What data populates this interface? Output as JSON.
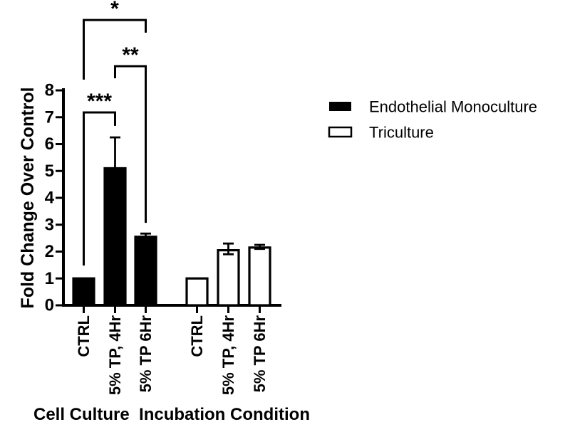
{
  "figure": {
    "background_color": "#ffffff",
    "ink_color": "#000000"
  },
  "chart_data": {
    "type": "bar",
    "title": "",
    "ylabel": "Fold Change Over Control",
    "xlabel": "Cell Culture  Incubation Condition",
    "ylim": [
      0,
      8
    ],
    "yticks": [
      0,
      1,
      2,
      3,
      4,
      5,
      6,
      7,
      8
    ],
    "grid": false,
    "legend_position": "right",
    "categories": [
      "CTRL",
      "5% TP, 4Hr",
      "5% TP 6Hr"
    ],
    "x_tick_labels_displayed": [
      "CTRL",
      "5% TP, 4Hr",
      "5% TP 6Hr",
      "CTRL",
      "5% TP, 4Hr",
      "5% TP 6Hr"
    ],
    "series": [
      {
        "name": "Endothelial Monoculture",
        "fill": "#000000",
        "values": [
          1.0,
          5.1,
          2.55
        ],
        "err_up": [
          0,
          1.15,
          0.12
        ],
        "err_down": [
          0,
          0,
          0
        ]
      },
      {
        "name": "Triculture",
        "fill": "#ffffff",
        "values": [
          1.0,
          2.05,
          2.15
        ],
        "err_up": [
          0,
          0.25,
          0.1
        ],
        "err_down": [
          0,
          0.15,
          0.05
        ]
      }
    ],
    "significance_brackets": [
      {
        "label": "***",
        "series": 0,
        "bar_from": 0,
        "bar_to": 1,
        "level_y": 7.18,
        "drop_left_to": 1.48,
        "drop_right_to": 6.68
      },
      {
        "label": "**",
        "series": 0,
        "bar_from": 1,
        "bar_to": 2,
        "level_y": 8.9,
        "drop_left_to": 8.45,
        "drop_right_to": 3.07
      },
      {
        "label": "*",
        "series": 0,
        "bar_from": 0,
        "bar_to": 2,
        "level_y": 10.62,
        "drop_left_to": 8.4,
        "drop_right_to": 10.15
      }
    ]
  }
}
